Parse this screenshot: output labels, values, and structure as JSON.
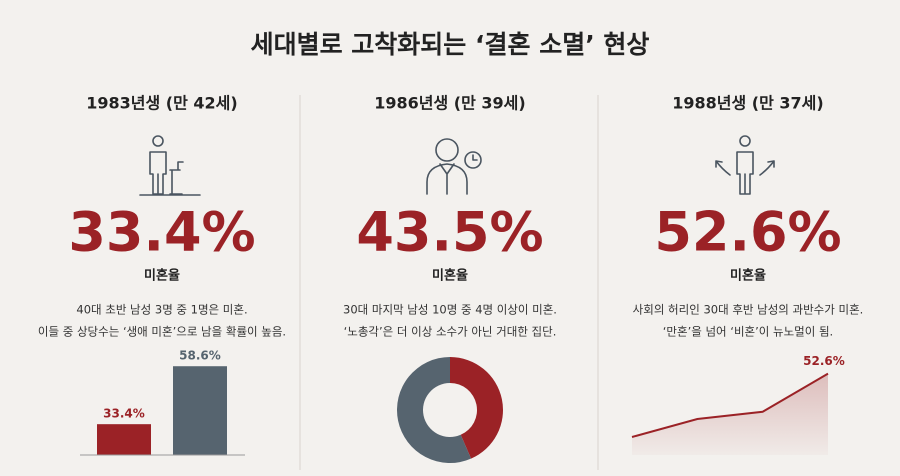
{
  "title": "세대별로 고착화되는 ‘결혼 소멸’ 현상",
  "panels": [
    {
      "heading": "1983년생 (만 42세)",
      "stat": "33.4%",
      "stat_label": "미혼율",
      "description": [
        "40대 초반 남성 3명 중 1명은 미혼.",
        "이들 중 상당수는 ‘생애 미혼’으로 남을 확률이 높음."
      ]
    },
    {
      "heading": "1986년생 (만 39세)",
      "stat": "43.5%",
      "stat_label": "미혼율",
      "description": [
        "30대 마지막 남성 10명 중 4명 이상이 미혼.",
        "‘노총각’은 더 이상 소수가 아닌 거대한 집단."
      ]
    },
    {
      "heading": "1988년생 (만 37세)",
      "stat": "52.6%",
      "stat_label": "미혼율",
      "description": [
        "사회의 허리인 30대 후반 남성의 과반수가 미혼.",
        "‘만혼’을 넘어 ‘비혼’이 뉴노멀이 됨."
      ]
    }
  ],
  "chart_data": [
    {
      "type": "bar",
      "categories": [
        null,
        null
      ],
      "values": [
        33.4,
        58.6
      ],
      "value_labels": [
        "33.4%",
        "58.6%"
      ],
      "colors": [
        "#9b2226",
        "#56646f"
      ],
      "ylim": [
        20,
        70
      ]
    },
    {
      "type": "pie",
      "values": [
        43.5,
        56.5
      ],
      "colors": [
        "#9b2226",
        "#56646f"
      ]
    },
    {
      "type": "line",
      "categories": [
        null,
        null,
        null,
        null
      ],
      "values": [
        35,
        40,
        42,
        52.6
      ],
      "value_labels": [
        null,
        null,
        null,
        "52.6%"
      ],
      "color": "#9b2226",
      "ylim": [
        30,
        55
      ]
    }
  ]
}
